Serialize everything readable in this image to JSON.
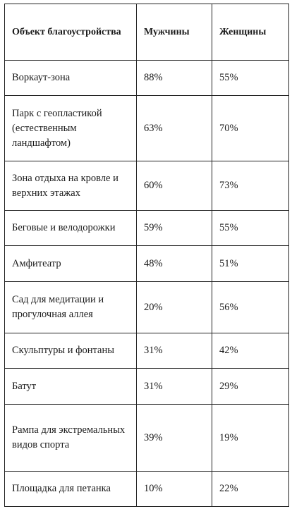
{
  "table": {
    "headers": [
      "Объект благоустройства",
      "Мужчины",
      "Женщины"
    ],
    "rows": [
      [
        "Воркаут-зона",
        "88%",
        "55%"
      ],
      [
        "Парк с геопластикой (естественным ландшафтом)",
        "63%",
        "70%"
      ],
      [
        "Зона отдыха на кровле и верхних этажах",
        "60%",
        "73%"
      ],
      [
        "Беговые и велодорожки",
        "59%",
        "55%"
      ],
      [
        "Амфитеатр",
        "48%",
        "51%"
      ],
      [
        "Сад для медитации и прогулочная аллея",
        "20%",
        "56%"
      ],
      [
        "Скульптуры и фонтаны",
        "31%",
        "42%"
      ],
      [
        "Батут",
        "31%",
        "29%"
      ],
      [
        "Рампа для экстремальных видов спорта",
        "39%",
        "19%"
      ],
      [
        "Площадка для петанка",
        "10%",
        "22%"
      ]
    ]
  }
}
